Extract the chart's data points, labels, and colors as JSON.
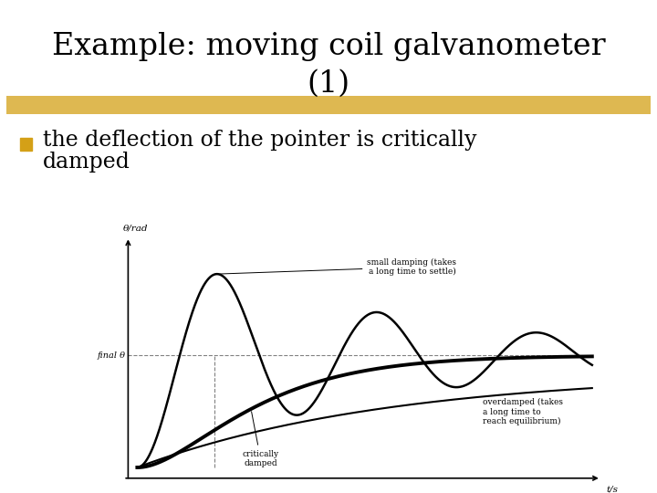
{
  "title_line1": "Example: moving coil galvanometer",
  "title_line2": "(1)",
  "title_fontsize": 24,
  "title_color": "#000000",
  "highlight_color": "#D4A017",
  "highlight_alpha": 0.75,
  "bullet_color": "#D4A017",
  "bullet_text_line1": "the deflection of the pointer is critically",
  "bullet_text_line2": "damped",
  "bullet_fontsize": 17,
  "bg_color": "#FFFFFF",
  "final_theta_level": 0.52,
  "annotations": {
    "small_damping": "small damping (takes\na long time to settle)",
    "overdamped": "overdamped (takes\na long time to\nreach equilibrium)",
    "critically_damped": "critically\ndamped",
    "final_theta": "final θ",
    "ylabel": "θ/rad",
    "xlabel": "t/s"
  }
}
